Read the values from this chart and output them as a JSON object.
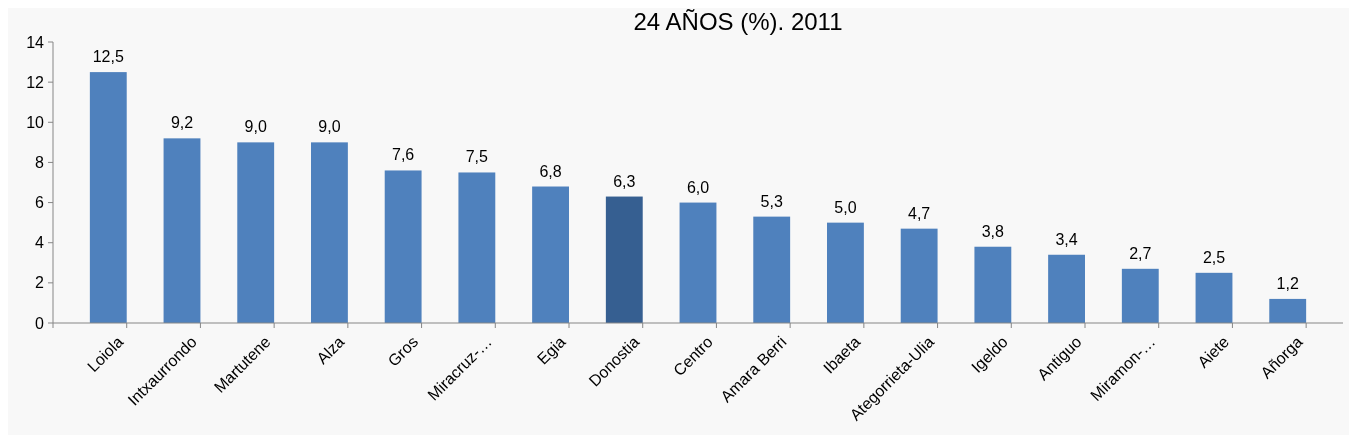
{
  "chart_data": {
    "type": "bar",
    "title": "24 AÑOS (%). 2011",
    "categories": [
      "Loiola",
      "Intxaurrondo",
      "Martutene",
      "Alza",
      "Gros",
      "Miracruz-…",
      "Egia",
      "Donostia",
      "Centro",
      "Amara Berri",
      "Ibaeta",
      "Ategorrieta-Ulia",
      "Igeldo",
      "Antiguo",
      "Miramon-…",
      "Aiete",
      "Añorga"
    ],
    "values": [
      12.5,
      9.2,
      9.0,
      9.0,
      7.6,
      7.5,
      6.8,
      6.3,
      6.0,
      5.3,
      5.0,
      4.7,
      3.8,
      3.4,
      2.7,
      2.5,
      1.2
    ],
    "value_labels": [
      "12,5",
      "9,2",
      "9,0",
      "9,0",
      "7,6",
      "7,5",
      "6,8",
      "6,3",
      "6,0",
      "5,3",
      "5,0",
      "4,7",
      "3,8",
      "3,4",
      "2,7",
      "2,5",
      "1,2"
    ],
    "colors": [
      "#4f81bd",
      "#4f81bd",
      "#4f81bd",
      "#4f81bd",
      "#4f81bd",
      "#4f81bd",
      "#4f81bd",
      "#365f91",
      "#4f81bd",
      "#4f81bd",
      "#4f81bd",
      "#4f81bd",
      "#4f81bd",
      "#4f81bd",
      "#4f81bd",
      "#4f81bd",
      "#4f81bd"
    ],
    "ylim": [
      0,
      14
    ],
    "yticks": [
      0,
      2,
      4,
      6,
      8,
      10,
      12,
      14
    ],
    "grid": false
  }
}
